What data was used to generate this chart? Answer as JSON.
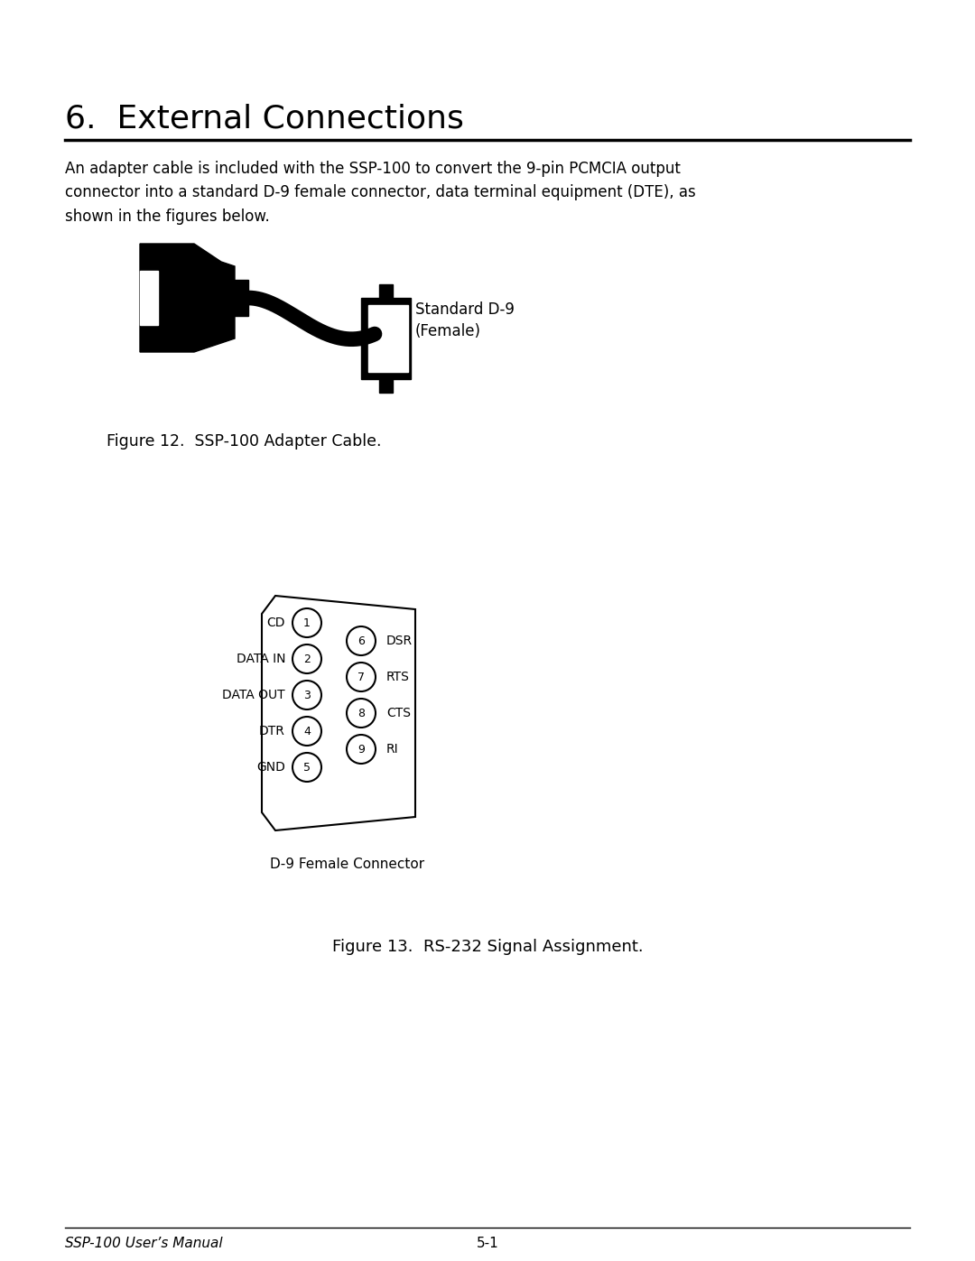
{
  "title": "6.  External Connections",
  "body_text": "An adapter cable is included with the SSP-100 to convert the 9-pin PCMCIA output\nconnector into a standard D-9 female connector, data terminal equipment (DTE), as\nshown in the figures below.",
  "fig12_caption": "Figure 12.  SSP-100 Adapter Cable.",
  "fig13_caption": "Figure 13.  RS-232 Signal Assignment.",
  "connector_label": "Standard D-9\n(Female)",
  "d9_label": "D-9 Female Connector",
  "left_pins": [
    {
      "pin": "1",
      "label": "CD",
      "row": 0
    },
    {
      "pin": "2",
      "label": "DATA IN",
      "row": 1
    },
    {
      "pin": "3",
      "label": "DATA OUT",
      "row": 2
    },
    {
      "pin": "4",
      "label": "DTR",
      "row": 3
    },
    {
      "pin": "5",
      "label": "GND",
      "row": 4
    }
  ],
  "right_pins": [
    {
      "pin": "6",
      "label": "DSR",
      "row": 0
    },
    {
      "pin": "7",
      "label": "RTS",
      "row": 1
    },
    {
      "pin": "8",
      "label": "CTS",
      "row": 2
    },
    {
      "pin": "9",
      "label": "RI",
      "row": 3
    }
  ],
  "footer_left": "SSP-100 User’s Manual",
  "footer_right": "5-1",
  "bg_color": "#ffffff",
  "text_color": "#000000",
  "line_color": "#000000"
}
